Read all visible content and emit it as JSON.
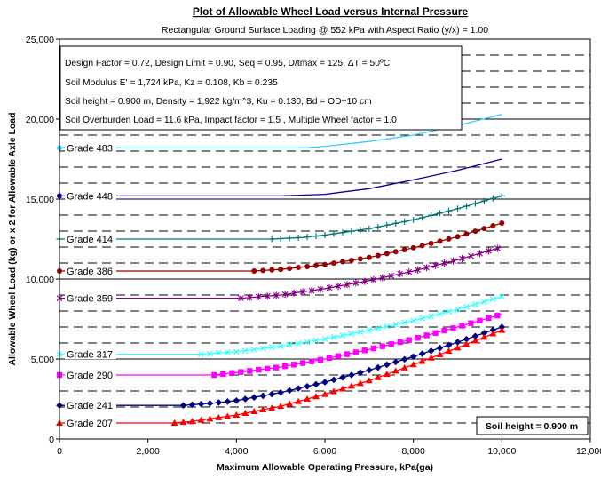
{
  "chart_data": {
    "type": "line",
    "title": "Plot of Allowable Wheel Load versus Internal Pressure",
    "subtitle": "Rectangular Ground Surface Loading @ 552 kPa with Aspect Ratio (y/x) = 1.00",
    "xlabel": "Maximum Allowable Operating Pressure,  kPa(ga)",
    "ylabel": "Allowable Wheel Load (kg) or x 2 for Allowable Axle Load",
    "xlim": [
      0,
      12000
    ],
    "ylim": [
      0,
      25000
    ],
    "x_ticks": [
      0,
      2000,
      4000,
      6000,
      8000,
      10000,
      12000
    ],
    "x_tick_labels": [
      "0",
      "2,000",
      "4,000",
      "6,000",
      "8,000",
      "10,000",
      "12,000"
    ],
    "y_ticks": [
      0,
      5000,
      10000,
      15000,
      20000,
      25000
    ],
    "y_tick_labels": [
      "0",
      "5,000",
      "10,000",
      "15,000",
      "20,000",
      "25,000"
    ],
    "grid": "solid major lines every 5,000 kg with dashed minor lines every 1,000 kg",
    "notes": [
      "Design Factor = 0.72,  Design Limit = 0.90,  Seq = 0.95,  D/tmax = 125,  ΔT = 50ºC",
      "Soil Modulus E' = 1,724 kPa,  Kz = 0.108,  Kb = 0.235",
      "Soil height = 0.900 m,  Density = 1,922 kg/m^3, Ku = 0.130,  Bd = OD+10 cm",
      "Soil Overburden Load = 11.6 kPa, Impact factor = 1.5 , Multiple Wheel factor = 1.0"
    ],
    "callout": "Soil height = 0.900 m",
    "series": [
      {
        "name": "Grade 483",
        "color": "#33ccff",
        "marker": "none",
        "start_x": 5500,
        "end_x": 10000,
        "x": [
          0,
          5500,
          6000,
          7000,
          8000,
          9000,
          10000
        ],
        "y": [
          18200,
          18200,
          18300,
          18600,
          19000,
          19600,
          20300
        ]
      },
      {
        "name": "Grade 448",
        "color": "#000099",
        "marker": "none",
        "start_x": 5000,
        "end_x": 10000,
        "x": [
          0,
          5000,
          6000,
          7000,
          8000,
          9000,
          10000
        ],
        "y": [
          15200,
          15200,
          15300,
          15650,
          16200,
          16800,
          17500
        ]
      },
      {
        "name": "Grade 414",
        "color": "#007777",
        "marker": "plus",
        "start_x": 4800,
        "end_x": 10000,
        "x": [
          0,
          4800,
          5500,
          6000,
          7000,
          8000,
          9000,
          10000
        ],
        "y": [
          12500,
          12500,
          12600,
          12750,
          13150,
          13700,
          14400,
          15200
        ]
      },
      {
        "name": "Grade 386",
        "color": "#990000",
        "marker": "circle",
        "start_x": 4400,
        "end_x": 10000,
        "x": [
          0,
          4400,
          5000,
          6000,
          7000,
          8000,
          9000,
          10000
        ],
        "y": [
          10500,
          10500,
          10600,
          10900,
          11350,
          11950,
          12650,
          13500
        ]
      },
      {
        "name": "Grade 359",
        "color": "#800080",
        "marker": "star",
        "start_x": 4100,
        "end_x": 10000,
        "x": [
          0,
          4100,
          5000,
          6000,
          7000,
          8000,
          9000,
          10000
        ],
        "y": [
          8800,
          8800,
          9000,
          9400,
          9900,
          10500,
          11200,
          12000
        ]
      },
      {
        "name": "Grade 317",
        "color": "#33ffff",
        "marker": "x",
        "start_x": 3200,
        "end_x": 10000,
        "x": [
          0,
          3200,
          4000,
          5000,
          6000,
          7000,
          8000,
          9000,
          10000
        ],
        "y": [
          5300,
          5300,
          5450,
          5800,
          6250,
          6800,
          7400,
          8100,
          8900
        ]
      },
      {
        "name": "Grade 290",
        "color": "#ff00ff",
        "marker": "square",
        "start_x": 3500,
        "end_x": 10000,
        "x": [
          0,
          3500,
          4000,
          5000,
          6000,
          7000,
          8000,
          9000,
          10000
        ],
        "y": [
          4000,
          4000,
          4150,
          4500,
          5000,
          5600,
          6250,
          7000,
          7800
        ]
      },
      {
        "name": "Grade 241",
        "color": "#000080",
        "marker": "diamond",
        "start_x": 2800,
        "end_x": 10000,
        "x": [
          0,
          2800,
          3500,
          4000,
          5000,
          6000,
          7000,
          8000,
          9000,
          10000
        ],
        "y": [
          2100,
          2100,
          2250,
          2400,
          2900,
          3550,
          4300,
          5150,
          6050,
          7000
        ]
      },
      {
        "name": "Grade 207",
        "color": "#ff0000",
        "marker": "triangle",
        "start_x": 2600,
        "end_x": 10000,
        "x": [
          0,
          2600,
          3000,
          4000,
          5000,
          6000,
          7000,
          8000,
          9000,
          10000
        ],
        "y": [
          1000,
          1000,
          1100,
          1500,
          2050,
          2800,
          3650,
          4650,
          5700,
          6800
        ]
      }
    ]
  }
}
